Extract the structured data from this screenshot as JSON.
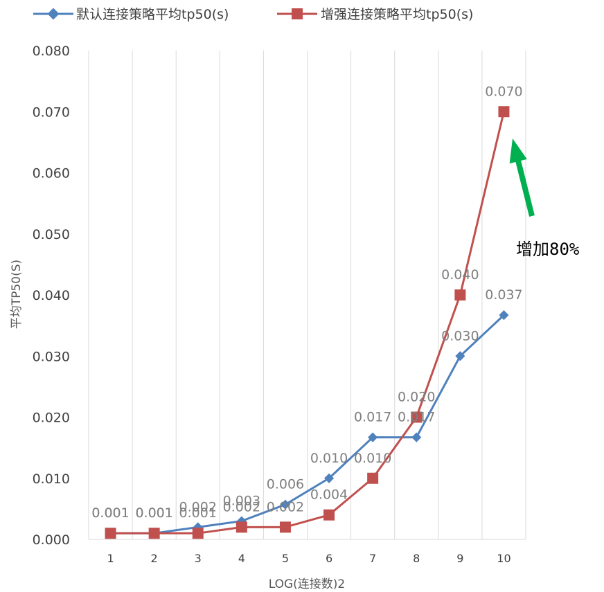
{
  "chart_data": {
    "type": "line",
    "x": [
      1,
      2,
      3,
      4,
      5,
      6,
      7,
      8,
      9,
      10
    ],
    "xlabel": "LOG(连接数)2",
    "ylabel": "平均TP50(S)",
    "ylim": [
      0,
      0.08
    ],
    "yticks": [
      "0.000",
      "0.010",
      "0.020",
      "0.030",
      "0.040",
      "0.050",
      "0.060",
      "0.070",
      "0.080"
    ],
    "grid": "vertical",
    "legend_position": "top",
    "series": [
      {
        "name": "默认连接策略平均tp50(s)",
        "color": "#4f81bd",
        "marker": "diamond",
        "values": [
          0.001,
          0.001,
          0.002,
          0.003,
          0.0057,
          0.01,
          0.0167,
          0.0167,
          0.03,
          0.0367
        ],
        "labels": [
          "0.001",
          "0.001",
          "0.002",
          "0.003",
          "0.006",
          "0.010",
          "0.017",
          "0.017",
          "0.030",
          "0.037"
        ]
      },
      {
        "name": "增强连接策略平均tp50(s)",
        "color": "#c0504d",
        "marker": "square",
        "values": [
          0.001,
          0.001,
          0.001,
          0.002,
          0.002,
          0.004,
          0.01,
          0.02,
          0.04,
          0.07
        ],
        "labels": [
          "0.001",
          "0.001",
          "0.001",
          "0.002",
          "0.002",
          "0.004",
          "0.010",
          "0.020",
          "0.040",
          "0.070"
        ]
      }
    ],
    "annotation": {
      "text": "增加80%",
      "arrow_color": "#00b050"
    }
  }
}
